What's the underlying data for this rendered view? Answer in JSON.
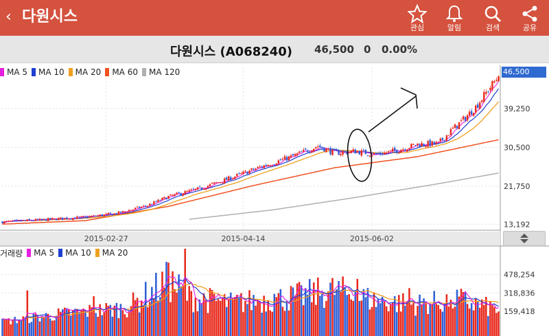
{
  "app": {
    "title": "다원시스",
    "back_label": "‹",
    "actions": [
      {
        "label": "관심",
        "icon": "star-icon"
      },
      {
        "label": "알림",
        "icon": "bell-icon"
      },
      {
        "label": "검색",
        "icon": "search-icon"
      },
      {
        "label": "공유",
        "icon": "share-icon"
      }
    ]
  },
  "stock": {
    "name": "다원시스 (A068240)",
    "price": "46,500",
    "change": "0",
    "change_pct": "0.00%"
  },
  "colors": {
    "header": "#d4523e",
    "up": "#e8291c",
    "down": "#2f5fd6",
    "ma5": "#e61ee0",
    "ma10": "#1f3fd0",
    "ma20": "#f0a020",
    "ma60": "#f05020",
    "ma120": "#b0b0b0"
  },
  "price_legend": [
    {
      "label": "MA 5",
      "color": "#e61ee0"
    },
    {
      "label": "MA 10",
      "color": "#1f3fd0"
    },
    {
      "label": "MA 20",
      "color": "#f0a020"
    },
    {
      "label": "MA 60",
      "color": "#f05020"
    },
    {
      "label": "MA 120",
      "color": "#b0b0b0"
    }
  ],
  "volume_legend": {
    "title": "거래량",
    "items": [
      {
        "label": "MA 5",
        "color": "#e61ee0"
      },
      {
        "label": "MA 10",
        "color": "#1f3fd0"
      },
      {
        "label": "MA 20",
        "color": "#f0a020"
      }
    ]
  },
  "price_axis": {
    "current": "46,500",
    "ticks": [
      {
        "label": "39,250",
        "value": 39250
      },
      {
        "label": "30,500",
        "value": 30500
      },
      {
        "label": "21,750",
        "value": 21750
      },
      {
        "label": "13,192",
        "value": 13192
      }
    ],
    "ylim": [
      12000,
      48500
    ]
  },
  "date_axis": [
    "2015-02-27",
    "2015-04-14",
    "2015-06-02"
  ],
  "volume_axis": {
    "ticks": [
      {
        "label": "478,254",
        "value": 478254
      },
      {
        "label": "318,836",
        "value": 318836
      },
      {
        "label": "159,418",
        "value": 159418
      }
    ],
    "ylim": [
      0,
      700000
    ]
  },
  "chart_data": {
    "type": "candlestick",
    "price_keypoints": [
      [
        0,
        13700
      ],
      [
        20,
        14200
      ],
      [
        40,
        14800
      ],
      [
        55,
        15600
      ],
      [
        70,
        17400
      ],
      [
        80,
        19400
      ],
      [
        95,
        21200
      ],
      [
        110,
        23600
      ],
      [
        125,
        26200
      ],
      [
        140,
        28500
      ],
      [
        152,
        30800
      ],
      [
        160,
        29200
      ],
      [
        170,
        29600
      ],
      [
        180,
        28900
      ],
      [
        190,
        29800
      ],
      [
        200,
        31200
      ],
      [
        210,
        31300
      ],
      [
        216,
        34200
      ],
      [
        222,
        36700
      ],
      [
        228,
        39600
      ],
      [
        234,
        43400
      ],
      [
        239,
        46500
      ]
    ],
    "ma_keypoints": {
      "ma60": [
        [
          0,
          13200
        ],
        [
          40,
          14000
        ],
        [
          80,
          17200
        ],
        [
          120,
          21800
        ],
        [
          160,
          25900
        ],
        [
          200,
          28400
        ],
        [
          239,
          32200
        ]
      ],
      "ma120": [
        [
          90,
          14300
        ],
        [
          130,
          16400
        ],
        [
          170,
          19200
        ],
        [
          210,
          22300
        ],
        [
          239,
          24700
        ]
      ]
    },
    "volume_keypoints": [
      [
        0,
        70000
      ],
      [
        30,
        140000
      ],
      [
        60,
        190000
      ],
      [
        80,
        420000
      ],
      [
        90,
        280000
      ],
      [
        110,
        230000
      ],
      [
        140,
        280000
      ],
      [
        160,
        340000
      ],
      [
        180,
        250000
      ],
      [
        200,
        220000
      ],
      [
        220,
        260000
      ],
      [
        239,
        170000
      ]
    ],
    "volume_spikes": [
      [
        12,
        340000
      ],
      [
        44,
        290000
      ],
      [
        80,
        580000
      ],
      [
        88,
        700000
      ],
      [
        131,
        310000
      ],
      [
        170,
        340000
      ],
      [
        171,
        440000
      ],
      [
        196,
        360000
      ],
      [
        216,
        260000
      ]
    ],
    "n_bars": 240
  }
}
